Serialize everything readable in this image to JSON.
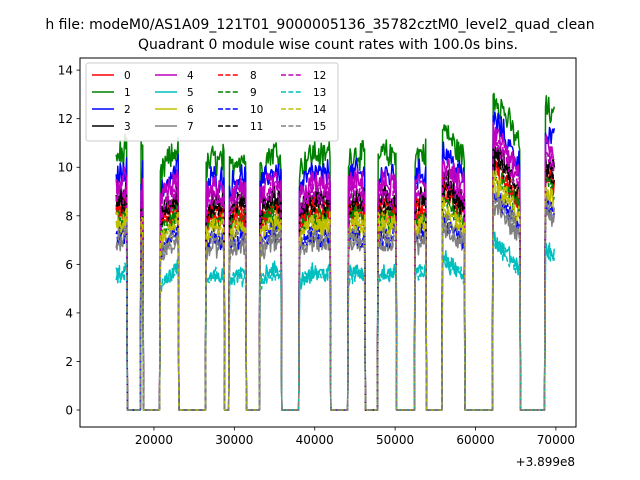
{
  "chart_data": {
    "type": "line",
    "suptitle": "h file: modeM0/AS1A09_121T01_9000005136_35782cztM0_level2_quad_clean",
    "title": "Quadrant 0 module wise count rates with 100.0s bins.",
    "xlabel": "",
    "ylabel": "",
    "x_offset_label": "+3.899e8",
    "xlim": [
      10800,
      72500
    ],
    "ylim": [
      -0.7,
      14.5
    ],
    "xticks": [
      20000,
      30000,
      40000,
      50000,
      60000,
      70000
    ],
    "xtick_labels": [
      "20000",
      "30000",
      "40000",
      "50000",
      "60000",
      "70000"
    ],
    "yticks": [
      0,
      2,
      4,
      6,
      8,
      10,
      12,
      14
    ],
    "ytick_labels": [
      "0",
      "2",
      "4",
      "6",
      "8",
      "10",
      "12",
      "14"
    ],
    "grid": false,
    "legend_position": "top-left",
    "legend_columns": 4,
    "active_intervals": [
      [
        15300,
        16600
      ],
      [
        18400,
        18650
      ],
      [
        20800,
        23000
      ],
      [
        26500,
        28700
      ],
      [
        29400,
        31400
      ],
      [
        33200,
        35800
      ],
      [
        38100,
        41900
      ],
      [
        44200,
        46200
      ],
      [
        47900,
        50100
      ],
      [
        52500,
        53800
      ],
      [
        55900,
        58600
      ],
      [
        62200,
        65500
      ],
      [
        68700,
        69800
      ]
    ],
    "segment_profile": [
      [
        1.0,
        1.02,
        1.0,
        1.08
      ],
      [
        1.0,
        1.02
      ],
      [
        0.92,
        0.98,
        1.0,
        1.05
      ],
      [
        0.95,
        1.0,
        0.98,
        1.0
      ],
      [
        0.95,
        1.0,
        1.0
      ],
      [
        0.95,
        1.0,
        1.03,
        1.0
      ],
      [
        0.95,
        1.0,
        1.02,
        1.0,
        1.03
      ],
      [
        1.0,
        1.02,
        1.0
      ],
      [
        1.0,
        1.02,
        1.0,
        1.03
      ],
      [
        1.0,
        1.02,
        1.02
      ],
      [
        1.12,
        1.08,
        1.03,
        1.0
      ],
      [
        1.25,
        1.2,
        1.12,
        1.05
      ],
      [
        1.2,
        1.15
      ]
    ],
    "series": [
      {
        "name": "0",
        "color": "#ff0000",
        "dash": "solid",
        "level": 8.0
      },
      {
        "name": "1",
        "color": "#008000",
        "dash": "solid",
        "level": 10.4
      },
      {
        "name": "2",
        "color": "#0000ff",
        "dash": "solid",
        "level": 9.6
      },
      {
        "name": "3",
        "color": "#000000",
        "dash": "solid",
        "level": 8.6
      },
      {
        "name": "4",
        "color": "#bf00bf",
        "dash": "solid",
        "level": 9.2
      },
      {
        "name": "5",
        "color": "#00bfbf",
        "dash": "solid",
        "level": 5.6
      },
      {
        "name": "6",
        "color": "#bfbf00",
        "dash": "solid",
        "level": 7.4
      },
      {
        "name": "7",
        "color": "#808080",
        "dash": "solid",
        "level": 6.8
      },
      {
        "name": "8",
        "color": "#ff0000",
        "dash": "dashed",
        "level": 8.2
      },
      {
        "name": "9",
        "color": "#008000",
        "dash": "dashed",
        "level": 7.9
      },
      {
        "name": "10",
        "color": "#0000ff",
        "dash": "dashed",
        "level": 7.1
      },
      {
        "name": "11",
        "color": "#000000",
        "dash": "dashed",
        "level": 8.4
      },
      {
        "name": "12",
        "color": "#bf00bf",
        "dash": "dashed",
        "level": 8.8
      },
      {
        "name": "13",
        "color": "#00bfbf",
        "dash": "dashed",
        "level": 5.5
      },
      {
        "name": "14",
        "color": "#bfbf00",
        "dash": "dashed",
        "level": 7.6
      },
      {
        "name": "15",
        "color": "#808080",
        "dash": "dashed",
        "level": 7.0
      }
    ]
  }
}
